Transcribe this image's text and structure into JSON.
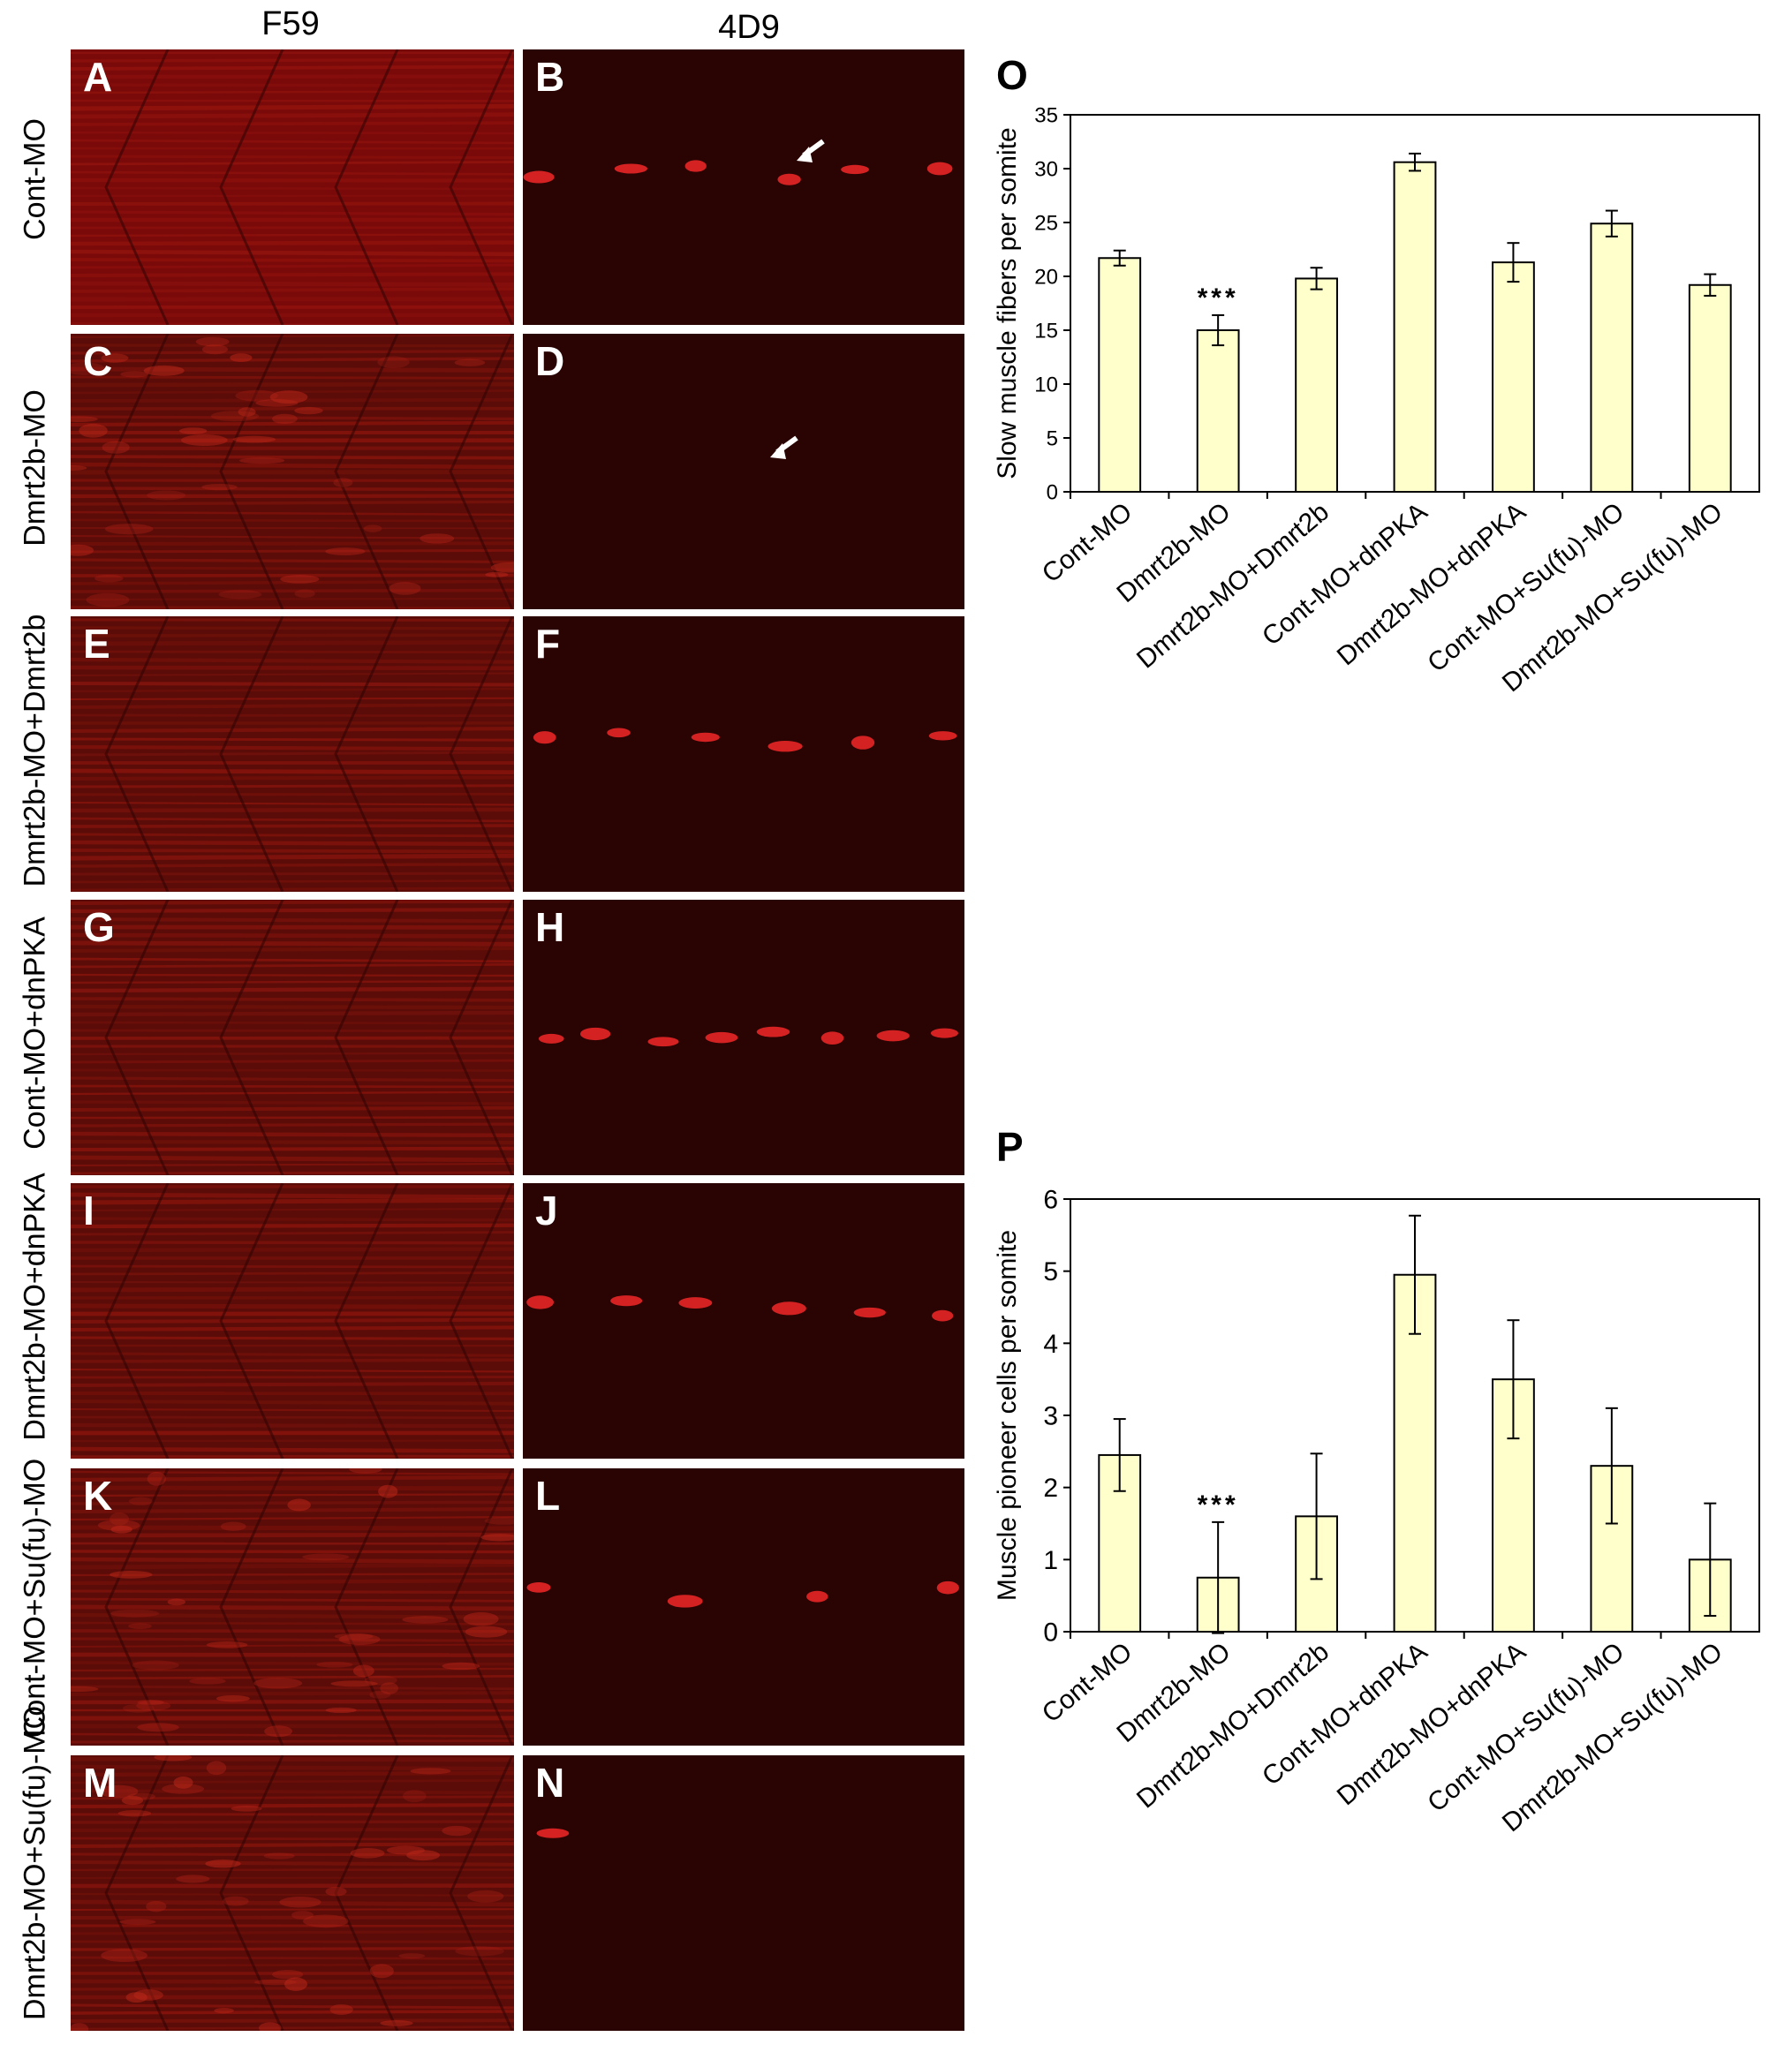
{
  "column_headers": [
    "F59",
    "4D9"
  ],
  "row_labels": [
    "Cont-MO",
    "Dmrt2b-MO",
    "Dmrt2b-MO+Dmrt2b",
    "Cont-MO+dnPKA",
    "Dmrt2b-MO+dnPKA",
    "Cont-MO+Su(fu)-MO",
    "Dmrt2b-MO+Su(fu)-MO"
  ],
  "panel_letters": [
    "A",
    "B",
    "C",
    "D",
    "E",
    "F",
    "G",
    "H",
    "I",
    "J",
    "K",
    "L",
    "M",
    "N"
  ],
  "colors": {
    "micrograph_bg": "#4a0606",
    "signal": "#ff2a2a",
    "bar_fill": "#ffffcc",
    "bar_stroke": "#000000"
  },
  "chart_data": [
    {
      "panel": "O",
      "type": "bar",
      "ylabel": "Slow muscle fibers per somite",
      "categories": [
        "Cont-MO",
        "Dmrt2b-MO",
        "Dmrt2b-MO+Dmrt2b",
        "Cont-MO+dnPKA",
        "Dmrt2b-MO+dnPKA",
        "Cont-MO+Su(fu)-MO",
        "Dmrt2b-MO+Su(fu)-MO"
      ],
      "values": [
        21.7,
        15.0,
        19.8,
        30.6,
        21.3,
        24.9,
        19.2
      ],
      "errors": [
        0.7,
        1.4,
        1.0,
        0.8,
        1.8,
        1.2,
        1.0
      ],
      "significance": [
        "",
        "***",
        "",
        "",
        "",
        "",
        ""
      ],
      "ylim": [
        0,
        35
      ],
      "yticks": [
        "0",
        "5",
        "10",
        "15",
        "20",
        "25",
        "30",
        "35"
      ]
    },
    {
      "panel": "P",
      "type": "bar",
      "ylabel": "Muscle pioneer cells per somite",
      "categories": [
        "Cont-MO",
        "Dmrt2b-MO",
        "Dmrt2b-MO+Dmrt2b",
        "Cont-MO+dnPKA",
        "Dmrt2b-MO+dnPKA",
        "Cont-MO+Su(fu)-MO",
        "Dmrt2b-MO+Su(fu)-MO"
      ],
      "values": [
        2.45,
        0.75,
        1.6,
        4.95,
        3.5,
        2.3,
        1.0
      ],
      "errors": [
        0.5,
        0.77,
        0.87,
        0.82,
        0.82,
        0.8,
        0.78
      ],
      "significance": [
        "",
        "***",
        "",
        "",
        "",
        "",
        ""
      ],
      "ylim": [
        0,
        6
      ],
      "yticks": [
        "0",
        "1",
        "2",
        "3",
        "4",
        "5",
        "6"
      ]
    }
  ]
}
